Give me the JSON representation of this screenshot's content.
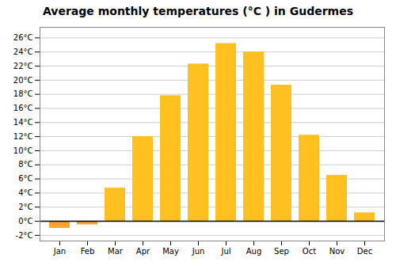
{
  "chart_data": {
    "type": "bar",
    "title": "Average monthly temperatures (°C ) in Gudermes",
    "categories": [
      "Jan",
      "Feb",
      "Mar",
      "Apr",
      "May",
      "Jun",
      "Jul",
      "Aug",
      "Sep",
      "Oct",
      "Nov",
      "Dec"
    ],
    "values": [
      -1.0,
      -0.5,
      4.7,
      12.0,
      17.8,
      22.3,
      25.2,
      24.0,
      19.3,
      12.2,
      6.5,
      1.2
    ],
    "colors": [
      "#FFA030",
      "#FFA030",
      "#FFC020",
      "#FFC020",
      "#FFC020",
      "#FFC020",
      "#FFC020",
      "#FFC020",
      "#FFC020",
      "#FFC020",
      "#FFC020",
      "#FFC020"
    ],
    "ylim": [
      -2.8,
      27.5
    ],
    "yticks": [
      {
        "value": -2,
        "label": "-2°C"
      },
      {
        "value": 0,
        "label": "0°C"
      },
      {
        "value": 2,
        "label": "2°C"
      },
      {
        "value": 4,
        "label": "4°C"
      },
      {
        "value": 6,
        "label": "6°C"
      },
      {
        "value": 8,
        "label": "8°C"
      },
      {
        "value": 10,
        "label": "10°C"
      },
      {
        "value": 12,
        "label": "12°C"
      },
      {
        "value": 14,
        "label": "14°C"
      },
      {
        "value": 16,
        "label": "16°C"
      },
      {
        "value": 18,
        "label": "18°C"
      },
      {
        "value": 20,
        "label": "20°C"
      },
      {
        "value": 22,
        "label": "22°C"
      },
      {
        "value": 24,
        "label": "24°C"
      },
      {
        "value": 26,
        "label": "26°C"
      }
    ],
    "grid": true
  }
}
